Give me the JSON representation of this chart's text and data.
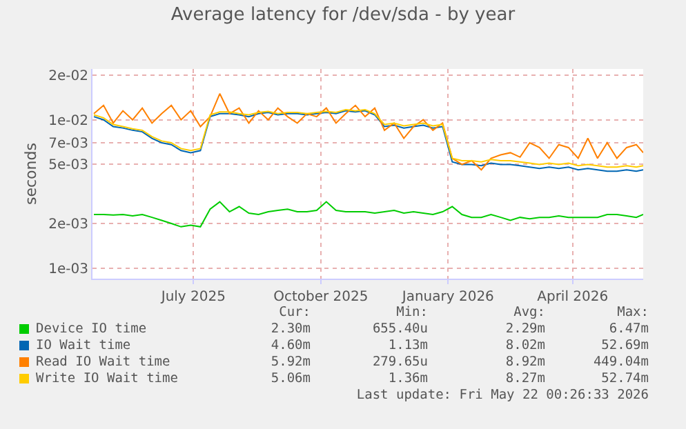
{
  "chart_data": {
    "type": "line",
    "title": "Average latency for /dev/sda - by year",
    "ylabel": "seconds",
    "log": true,
    "grid": true,
    "legend": "bottom",
    "marker": "none",
    "line_style": "solid",
    "x": [
      "2025-04-20",
      "2025-04-27",
      "2025-05-04",
      "2025-05-11",
      "2025-05-18",
      "2025-05-25",
      "2025-06-01",
      "2025-06-08",
      "2025-06-15",
      "2025-06-22",
      "2025-06-29",
      "2025-07-06",
      "2025-07-13",
      "2025-07-20",
      "2025-07-27",
      "2025-08-03",
      "2025-08-10",
      "2025-08-17",
      "2025-08-24",
      "2025-08-31",
      "2025-09-07",
      "2025-09-14",
      "2025-09-21",
      "2025-09-28",
      "2025-10-05",
      "2025-10-12",
      "2025-10-19",
      "2025-10-26",
      "2025-11-02",
      "2025-11-09",
      "2025-11-16",
      "2025-11-23",
      "2025-11-30",
      "2025-12-07",
      "2025-12-14",
      "2025-12-21",
      "2025-12-28",
      "2026-01-04",
      "2026-01-11",
      "2026-01-18",
      "2026-01-25",
      "2026-02-01",
      "2026-02-08",
      "2026-02-15",
      "2026-02-22",
      "2026-03-01",
      "2026-03-08",
      "2026-03-15",
      "2026-03-22",
      "2026-03-29",
      "2026-04-05",
      "2026-04-12",
      "2026-04-19",
      "2026-04-26",
      "2026-05-03",
      "2026-05-10",
      "2026-05-17",
      "2026-05-22"
    ],
    "xlim": [
      "2025-04-19",
      "2026-05-22"
    ],
    "xticks": [
      {
        "value": "2025-07-01",
        "label": "July 2025"
      },
      {
        "value": "2025-10-01",
        "label": "October 2025"
      },
      {
        "value": "2026-01-01",
        "label": "January 2026"
      },
      {
        "value": "2026-04-01",
        "label": "April 2026"
      }
    ],
    "ylim": [
      0.00085,
      0.022
    ],
    "yticks": [
      {
        "value": 0.001,
        "label": "1e-03"
      },
      {
        "value": 0.002,
        "label": "2e-03"
      },
      {
        "value": 0.005,
        "label": "5e-03"
      },
      {
        "value": 0.007,
        "label": "7e-03"
      },
      {
        "value": 0.01,
        "label": "1e-02"
      },
      {
        "value": 0.02,
        "label": "2e-02"
      }
    ],
    "series": [
      {
        "name": "Device IO time",
        "color": "#00cc00",
        "values": [
          0.0023,
          0.0023,
          0.00228,
          0.0023,
          0.00225,
          0.0023,
          0.0022,
          0.0021,
          0.002,
          0.0019,
          0.00195,
          0.0019,
          0.0025,
          0.0028,
          0.0024,
          0.0026,
          0.00235,
          0.0023,
          0.0024,
          0.00245,
          0.0025,
          0.0024,
          0.0024,
          0.00245,
          0.0028,
          0.00245,
          0.0024,
          0.0024,
          0.0024,
          0.00235,
          0.0024,
          0.00245,
          0.00235,
          0.0024,
          0.00235,
          0.0023,
          0.0024,
          0.0026,
          0.0023,
          0.0022,
          0.0022,
          0.0023,
          0.0022,
          0.0021,
          0.0022,
          0.00215,
          0.0022,
          0.0022,
          0.00225,
          0.0022,
          0.0022,
          0.0022,
          0.0022,
          0.0023,
          0.0023,
          0.00225,
          0.0022,
          0.0023
        ]
      },
      {
        "name": "IO Wait time",
        "color": "#0066b3",
        "values": [
          0.0105,
          0.01,
          0.009,
          0.0088,
          0.0085,
          0.0083,
          0.0075,
          0.007,
          0.0068,
          0.0062,
          0.006,
          0.0062,
          0.0105,
          0.011,
          0.011,
          0.0108,
          0.0105,
          0.011,
          0.0112,
          0.0108,
          0.011,
          0.011,
          0.0108,
          0.011,
          0.0112,
          0.011,
          0.0115,
          0.0113,
          0.0115,
          0.0108,
          0.009,
          0.0092,
          0.0088,
          0.009,
          0.0092,
          0.0088,
          0.009,
          0.0052,
          0.005,
          0.005,
          0.0049,
          0.0051,
          0.005,
          0.005,
          0.0049,
          0.0048,
          0.0047,
          0.0048,
          0.0047,
          0.0048,
          0.0046,
          0.0047,
          0.0046,
          0.0045,
          0.0045,
          0.0046,
          0.0045,
          0.0046
        ]
      },
      {
        "name": "Read IO Wait time",
        "color": "#ff8000",
        "values": [
          0.011,
          0.0125,
          0.0095,
          0.0115,
          0.01,
          0.012,
          0.0095,
          0.011,
          0.0125,
          0.01,
          0.0115,
          0.009,
          0.0105,
          0.015,
          0.011,
          0.012,
          0.0095,
          0.0115,
          0.01,
          0.012,
          0.0105,
          0.0095,
          0.011,
          0.0105,
          0.012,
          0.0095,
          0.011,
          0.0125,
          0.0105,
          0.012,
          0.0085,
          0.0095,
          0.0075,
          0.009,
          0.01,
          0.0085,
          0.0095,
          0.0055,
          0.005,
          0.0053,
          0.0046,
          0.0055,
          0.0058,
          0.006,
          0.0056,
          0.007,
          0.0065,
          0.0055,
          0.0068,
          0.0065,
          0.0055,
          0.0075,
          0.0055,
          0.007,
          0.0055,
          0.0065,
          0.0068,
          0.006
        ]
      },
      {
        "name": "Write IO Wait time",
        "color": "#ffcc00",
        "values": [
          0.0108,
          0.0103,
          0.0093,
          0.009,
          0.0087,
          0.0085,
          0.0077,
          0.0072,
          0.007,
          0.0064,
          0.0062,
          0.0064,
          0.0108,
          0.0113,
          0.0113,
          0.011,
          0.0108,
          0.0112,
          0.0114,
          0.011,
          0.0112,
          0.0112,
          0.011,
          0.0112,
          0.0114,
          0.0112,
          0.0117,
          0.0115,
          0.0117,
          0.011,
          0.0093,
          0.0095,
          0.0091,
          0.0093,
          0.0095,
          0.0091,
          0.0093,
          0.0055,
          0.0053,
          0.0053,
          0.0052,
          0.0054,
          0.0053,
          0.0053,
          0.0052,
          0.0051,
          0.005,
          0.0051,
          0.005,
          0.0051,
          0.0049,
          0.005,
          0.0049,
          0.0048,
          0.0048,
          0.0049,
          0.0048,
          0.0049
        ]
      }
    ],
    "annotations": [
      "Cur:",
      "Min:",
      "Avg:",
      "Max:",
      "2.30m",
      "655.40u",
      "2.29m",
      "6.47m",
      "4.60m",
      "1.13m",
      "8.02m",
      "52.69m",
      "5.92m",
      "279.65u",
      "8.92m",
      "449.04m",
      "5.06m",
      "1.36m",
      "8.27m",
      "52.74m",
      "Last update: Fri May 22 00:26:33 2026"
    ]
  }
}
